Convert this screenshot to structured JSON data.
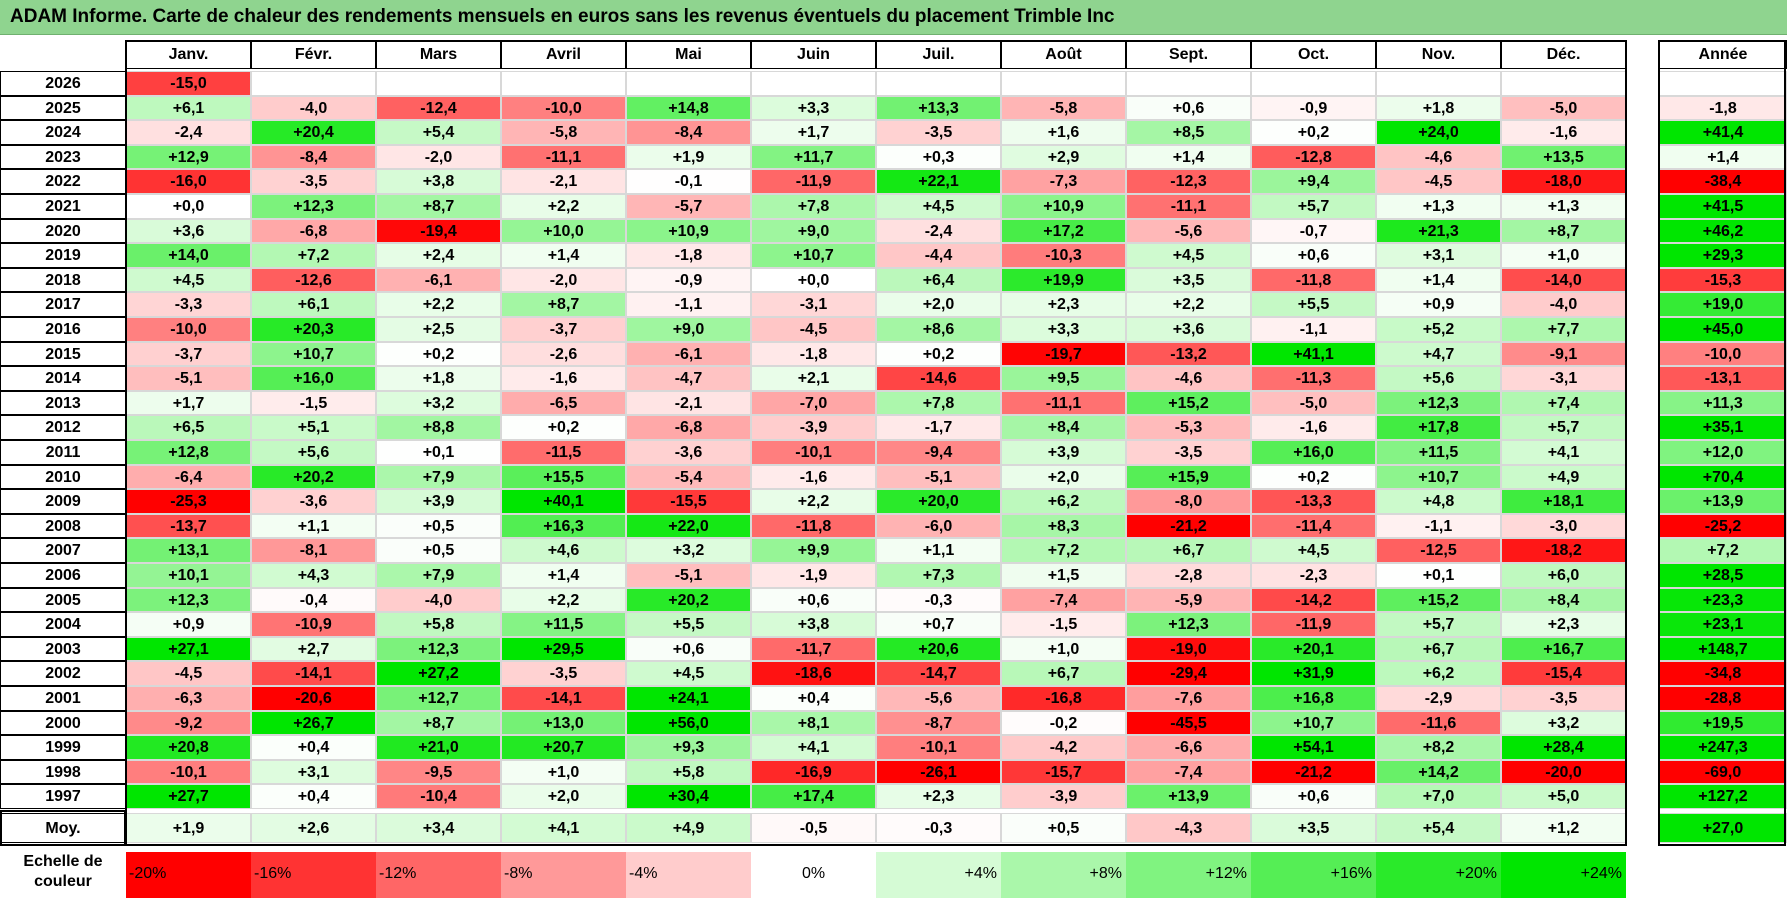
{
  "title": "ADAM Informe. Carte de chaleur des rendements mensuels en euros sans les revenus éventuels du placement Trimble Inc",
  "chart_data": {
    "type": "heatmap",
    "columns": [
      "Janv.",
      "Févr.",
      "Mars",
      "Avril",
      "Mai",
      "Juin",
      "Juil.",
      "Août",
      "Sept.",
      "Oct.",
      "Nov.",
      "Déc."
    ],
    "year_header": "Année",
    "rows": [
      {
        "label": "2026",
        "values": [
          "-15,0",
          "",
          "",
          "",
          "",
          "",
          "",
          "",
          "",
          "",
          "",
          ""
        ],
        "year": ""
      },
      {
        "label": "2025",
        "values": [
          "+6,1",
          "-4,0",
          "-12,4",
          "-10,0",
          "+14,8",
          "+3,3",
          "+13,3",
          "-5,8",
          "+0,6",
          "-0,9",
          "+1,8",
          "-5,0"
        ],
        "year": "-1,8"
      },
      {
        "label": "2024",
        "values": [
          "-2,4",
          "+20,4",
          "+5,4",
          "-5,8",
          "-8,4",
          "+1,7",
          "-3,5",
          "+1,6",
          "+8,5",
          "+0,2",
          "+24,0",
          "-1,6"
        ],
        "year": "+41,4"
      },
      {
        "label": "2023",
        "values": [
          "+12,9",
          "-8,4",
          "-2,0",
          "-11,1",
          "+1,9",
          "+11,7",
          "+0,3",
          "+2,9",
          "+1,4",
          "-12,8",
          "-4,6",
          "+13,5"
        ],
        "year": "+1,4"
      },
      {
        "label": "2022",
        "values": [
          "-16,0",
          "-3,5",
          "+3,8",
          "-2,1",
          "-0,1",
          "-11,9",
          "+22,1",
          "-7,3",
          "-12,3",
          "+9,4",
          "-4,5",
          "-18,0"
        ],
        "year": "-38,4"
      },
      {
        "label": "2021",
        "values": [
          "+0,0",
          "+12,3",
          "+8,7",
          "+2,2",
          "-5,7",
          "+7,8",
          "+4,5",
          "+10,9",
          "-11,1",
          "+5,7",
          "+1,3",
          "+1,3"
        ],
        "year": "+41,5"
      },
      {
        "label": "2020",
        "values": [
          "+3,6",
          "-6,8",
          "-19,4",
          "+10,0",
          "+10,9",
          "+9,0",
          "-2,4",
          "+17,2",
          "-5,6",
          "-0,7",
          "+21,3",
          "+8,7"
        ],
        "year": "+46,2"
      },
      {
        "label": "2019",
        "values": [
          "+14,0",
          "+7,2",
          "+2,4",
          "+1,4",
          "-1,8",
          "+10,7",
          "-4,4",
          "-10,3",
          "+4,5",
          "+0,6",
          "+3,1",
          "+1,0"
        ],
        "year": "+29,3"
      },
      {
        "label": "2018",
        "values": [
          "+4,5",
          "-12,6",
          "-6,1",
          "-2,0",
          "-0,9",
          "+0,0",
          "+6,4",
          "+19,9",
          "+3,5",
          "-11,8",
          "+1,4",
          "-14,0"
        ],
        "year": "-15,3"
      },
      {
        "label": "2017",
        "values": [
          "-3,3",
          "+6,1",
          "+2,2",
          "+8,7",
          "-1,1",
          "-3,1",
          "+2,0",
          "+2,3",
          "+2,2",
          "+5,5",
          "+0,9",
          "-4,0"
        ],
        "year": "+19,0"
      },
      {
        "label": "2016",
        "values": [
          "-10,0",
          "+20,3",
          "+2,5",
          "-3,7",
          "+9,0",
          "-4,5",
          "+8,6",
          "+3,3",
          "+3,6",
          "-1,1",
          "+5,2",
          "+7,7"
        ],
        "year": "+45,0"
      },
      {
        "label": "2015",
        "values": [
          "-3,7",
          "+10,7",
          "+0,2",
          "-2,6",
          "-6,1",
          "-1,8",
          "+0,2",
          "-19,7",
          "-13,2",
          "+41,1",
          "+4,7",
          "-9,1"
        ],
        "year": "-10,0"
      },
      {
        "label": "2014",
        "values": [
          "-5,1",
          "+16,0",
          "+1,8",
          "-1,6",
          "-4,7",
          "+2,1",
          "-14,6",
          "+9,5",
          "-4,6",
          "-11,3",
          "+5,6",
          "-3,1"
        ],
        "year": "-13,1"
      },
      {
        "label": "2013",
        "values": [
          "+1,7",
          "-1,5",
          "+3,2",
          "-6,5",
          "-2,1",
          "-7,0",
          "+7,8",
          "-11,1",
          "+15,2",
          "-5,0",
          "+12,3",
          "+7,4"
        ],
        "year": "+11,3"
      },
      {
        "label": "2012",
        "values": [
          "+6,5",
          "+5,1",
          "+8,8",
          "+0,2",
          "-6,8",
          "-3,9",
          "-1,7",
          "+8,4",
          "-5,3",
          "-1,6",
          "+17,8",
          "+5,7"
        ],
        "year": "+35,1"
      },
      {
        "label": "2011",
        "values": [
          "+12,8",
          "+5,6",
          "+0,1",
          "-11,5",
          "-3,6",
          "-10,1",
          "-9,4",
          "+3,9",
          "-3,5",
          "+16,0",
          "+11,5",
          "+4,1"
        ],
        "year": "+12,0"
      },
      {
        "label": "2010",
        "values": [
          "-6,4",
          "+20,2",
          "+7,9",
          "+15,5",
          "-5,4",
          "-1,6",
          "-5,1",
          "+2,0",
          "+15,9",
          "+0,2",
          "+10,7",
          "+4,9"
        ],
        "year": "+70,4"
      },
      {
        "label": "2009",
        "values": [
          "-25,3",
          "-3,6",
          "+3,9",
          "+40,1",
          "-15,5",
          "+2,2",
          "+20,0",
          "+6,2",
          "-8,0",
          "-13,3",
          "+4,8",
          "+18,1"
        ],
        "year": "+13,9"
      },
      {
        "label": "2008",
        "values": [
          "-13,7",
          "+1,1",
          "+0,5",
          "+16,3",
          "+22,0",
          "-11,8",
          "-6,0",
          "+8,3",
          "-21,2",
          "-11,4",
          "-1,1",
          "-3,0"
        ],
        "year": "-25,2"
      },
      {
        "label": "2007",
        "values": [
          "+13,1",
          "-8,1",
          "+0,5",
          "+4,6",
          "+3,2",
          "+9,9",
          "+1,1",
          "+7,2",
          "+6,7",
          "+4,5",
          "-12,5",
          "-18,2"
        ],
        "year": "+7,2"
      },
      {
        "label": "2006",
        "values": [
          "+10,1",
          "+4,3",
          "+7,9",
          "+1,4",
          "-5,1",
          "-1,9",
          "+7,3",
          "+1,5",
          "-2,8",
          "-2,3",
          "+0,1",
          "+6,0"
        ],
        "year": "+28,5"
      },
      {
        "label": "2005",
        "values": [
          "+12,3",
          "-0,4",
          "-4,0",
          "+2,2",
          "+20,2",
          "+0,6",
          "-0,3",
          "-7,4",
          "-5,9",
          "-14,2",
          "+15,2",
          "+8,4"
        ],
        "year": "+23,3"
      },
      {
        "label": "2004",
        "values": [
          "+0,9",
          "-10,9",
          "+5,8",
          "+11,5",
          "+5,5",
          "+3,8",
          "+0,7",
          "-1,5",
          "+12,3",
          "-11,9",
          "+5,7",
          "+2,3"
        ],
        "year": "+23,1"
      },
      {
        "label": "2003",
        "values": [
          "+27,1",
          "+2,7",
          "+12,3",
          "+29,5",
          "+0,6",
          "-11,7",
          "+20,6",
          "+1,0",
          "-19,0",
          "+20,1",
          "+6,7",
          "+16,7"
        ],
        "year": "+148,7"
      },
      {
        "label": "2002",
        "values": [
          "-4,5",
          "-14,1",
          "+27,2",
          "-3,5",
          "+4,5",
          "-18,6",
          "-14,7",
          "+6,7",
          "-29,4",
          "+31,9",
          "+6,2",
          "-15,4"
        ],
        "year": "-34,8"
      },
      {
        "label": "2001",
        "values": [
          "-6,3",
          "-20,6",
          "+12,7",
          "-14,1",
          "+24,1",
          "+0,4",
          "-5,6",
          "-16,8",
          "-7,6",
          "+16,8",
          "-2,9",
          "-3,5"
        ],
        "year": "-28,8"
      },
      {
        "label": "2000",
        "values": [
          "-9,2",
          "+26,7",
          "+8,7",
          "+13,0",
          "+56,0",
          "+8,1",
          "-8,7",
          "-0,2",
          "-45,5",
          "+10,7",
          "-11,6",
          "+3,2"
        ],
        "year": "+19,5"
      },
      {
        "label": "1999",
        "values": [
          "+20,8",
          "+0,4",
          "+21,0",
          "+20,7",
          "+9,3",
          "+4,1",
          "-10,1",
          "-4,2",
          "-6,6",
          "+54,1",
          "+8,2",
          "+28,4"
        ],
        "year": "+247,3"
      },
      {
        "label": "1998",
        "values": [
          "-10,1",
          "+3,1",
          "-9,5",
          "+1,0",
          "+5,8",
          "-16,9",
          "-26,1",
          "-15,7",
          "-7,4",
          "-21,2",
          "+14,2",
          "-20,0"
        ],
        "year": "-69,0"
      },
      {
        "label": "1997",
        "values": [
          "+27,7",
          "+0,4",
          "-10,4",
          "+2,0",
          "+30,4",
          "+17,4",
          "+2,3",
          "-3,9",
          "+13,9",
          "+0,6",
          "+7,0",
          "+5,0"
        ],
        "year": "+127,2"
      }
    ],
    "average": {
      "label": "Moy.",
      "values": [
        "+1,9",
        "+2,6",
        "+3,4",
        "+4,1",
        "+4,9",
        "-0,5",
        "-0,3",
        "+0,5",
        "-4,3",
        "+3,5",
        "+5,4",
        "+1,2"
      ],
      "year": "+27,0"
    },
    "scale": {
      "label_line1": "Echelle de",
      "label_line2": "couleur",
      "steps": [
        "-20%",
        "-16%",
        "-12%",
        "-8%",
        "-4%",
        "0%",
        "+4%",
        "+8%",
        "+12%",
        "+16%",
        "+20%",
        "+24%"
      ]
    },
    "colors": {
      "negative_max": "#ff0000",
      "neutral": "#ffffff",
      "positive_max": "#00e600",
      "title_bg": "#8fd48f"
    }
  }
}
